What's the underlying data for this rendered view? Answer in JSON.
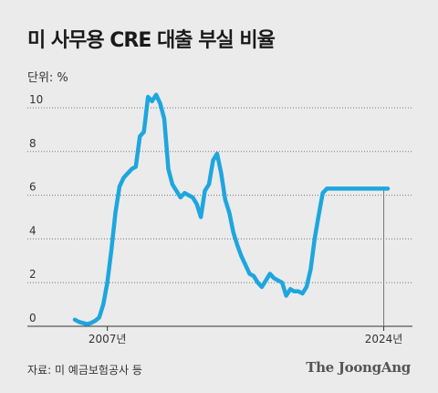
{
  "header": {
    "title": "미 사무용 CRE 대출 부실 비율",
    "unit_label": "단위: %"
  },
  "footer": {
    "source": "자료: 미 예금보험공사 등",
    "logo": "The JoongAng"
  },
  "colors": {
    "line": "#1ea6de",
    "grid": "#777777",
    "axis": "#333333",
    "background": "#ebebeb"
  },
  "chart_data": {
    "type": "line",
    "title": "미 사무용 CRE 대출 부실 비율",
    "ylabel": "단위: %",
    "ylim": [
      0,
      10
    ],
    "xlim": [
      2005.0,
      2024.25
    ],
    "y_ticks": [
      0,
      2,
      4,
      6,
      8,
      10
    ],
    "x_tick_labels": [
      {
        "x": 2007.0,
        "label": "2007년"
      },
      {
        "x": 2024.0,
        "label": "2024년"
      }
    ],
    "grid": "horizontal dotted",
    "series": [
      {
        "x": [
          2005.0,
          2005.25,
          2005.5,
          2005.75,
          2006.0,
          2006.25,
          2006.5,
          2006.75,
          2007.0,
          2007.25,
          2007.5,
          2007.75,
          2008.0,
          2008.25,
          2008.5,
          2008.75,
          2009.0,
          2009.25,
          2009.5,
          2009.75,
          2010.0,
          2010.25,
          2010.5,
          2010.75,
          2011.0,
          2011.25,
          2011.5,
          2011.75,
          2012.0,
          2012.25,
          2012.5,
          2012.75,
          2013.0,
          2013.25,
          2013.5,
          2013.75,
          2014.0,
          2014.25,
          2014.5,
          2014.75,
          2015.0,
          2015.25,
          2015.5,
          2015.75,
          2016.0,
          2016.25,
          2016.5,
          2016.75,
          2017.0,
          2017.25,
          2017.5,
          2017.75,
          2018.0,
          2018.25,
          2018.5,
          2018.75,
          2019.0,
          2019.25,
          2019.5,
          2019.75,
          2020.0,
          2020.25,
          2020.5,
          2020.75,
          2021.0,
          2021.25,
          2021.5,
          2021.75,
          2022.0,
          2022.25,
          2022.5,
          2022.75,
          2023.0,
          2023.25,
          2023.5,
          2023.75,
          2024.0,
          2024.25
        ],
        "values": [
          0.3,
          0.2,
          0.15,
          0.1,
          0.15,
          0.25,
          0.4,
          1.0,
          2.0,
          3.5,
          5.2,
          6.4,
          6.8,
          7.0,
          7.2,
          7.3,
          8.7,
          8.9,
          10.5,
          10.3,
          10.6,
          10.2,
          9.5,
          7.2,
          6.5,
          6.2,
          5.9,
          6.1,
          6.0,
          5.9,
          5.6,
          5.0,
          6.2,
          6.5,
          7.6,
          7.9,
          7.0,
          5.8,
          5.2,
          4.3,
          3.7,
          3.2,
          2.8,
          2.4,
          2.3,
          2.0,
          1.8,
          2.1,
          2.4,
          2.2,
          2.1,
          2.0,
          1.4,
          1.7,
          1.6,
          1.6,
          1.5,
          1.8,
          2.6,
          4.0,
          5.1,
          6.1,
          6.3,
          6.3,
          6.3,
          6.3,
          6.3,
          6.3,
          6.3,
          6.3,
          6.3,
          6.3,
          6.3,
          6.3,
          6.3,
          6.3,
          6.3,
          6.3
        ]
      }
    ]
  }
}
